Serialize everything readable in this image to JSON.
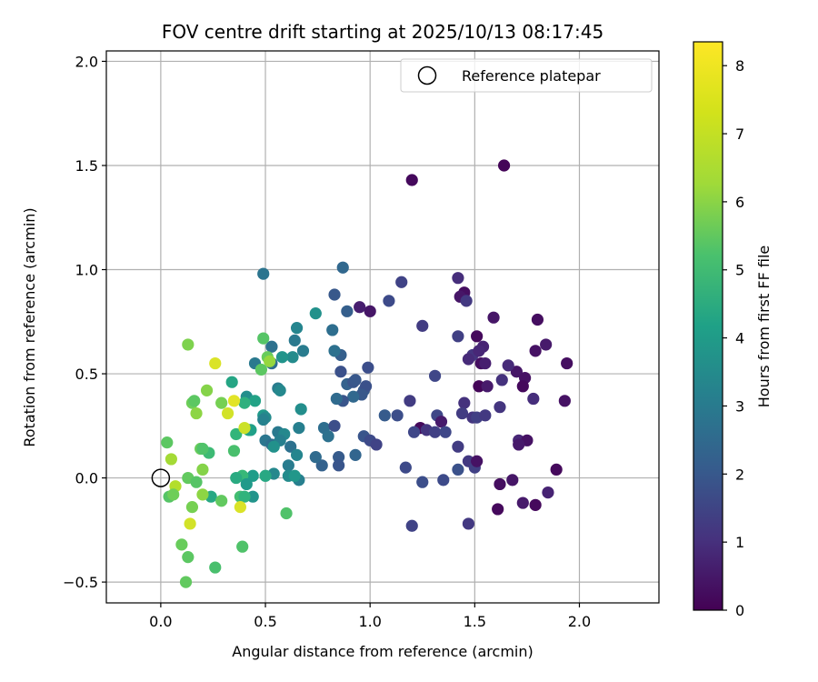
{
  "chart_data": {
    "type": "scatter",
    "title": "FOV centre drift starting at 2025/10/13 08:17:45",
    "xlabel": "Angular distance from reference (arcmin)",
    "ylabel": "Rotation from reference (arcmin)",
    "xlim": [
      -0.26,
      2.38
    ],
    "ylim": [
      -0.6,
      2.05
    ],
    "xticks": [
      0.0,
      0.5,
      1.0,
      1.5,
      2.0
    ],
    "xtick_labels": [
      "0.0",
      "0.5",
      "1.0",
      "1.5",
      "2.0"
    ],
    "yticks": [
      -0.5,
      0.0,
      0.5,
      1.0,
      1.5,
      2.0
    ],
    "ytick_labels": [
      "−0.5",
      "0.0",
      "0.5",
      "1.0",
      "1.5",
      "2.0"
    ],
    "grid": true,
    "legend": {
      "position": "top-right",
      "entries": [
        "Reference platepar"
      ]
    },
    "reference_point": {
      "x": 0.0,
      "y": 0.0,
      "label": "Reference platepar"
    },
    "colorbar": {
      "label": "Hours from first FF file",
      "range": [
        0,
        8.35
      ],
      "ticks": [
        0,
        1,
        2,
        3,
        4,
        5,
        6,
        7,
        8
      ],
      "tick_labels": [
        "0",
        "1",
        "2",
        "3",
        "4",
        "5",
        "6",
        "7",
        "8"
      ],
      "colormap": "viridis"
    },
    "points": [
      {
        "x": 1.2,
        "y": 1.43,
        "h": 0.2
      },
      {
        "x": 1.64,
        "y": 1.5,
        "h": 0.1
      },
      {
        "x": 1.8,
        "y": 0.76,
        "h": 0.3
      },
      {
        "x": 1.59,
        "y": 0.77,
        "h": 0.5
      },
      {
        "x": 1.84,
        "y": 0.64,
        "h": 0.6
      },
      {
        "x": 1.94,
        "y": 0.55,
        "h": 0.3
      },
      {
        "x": 1.79,
        "y": 0.61,
        "h": 0.4
      },
      {
        "x": 1.7,
        "y": 0.51,
        "h": 0.5
      },
      {
        "x": 1.74,
        "y": 0.48,
        "h": 0.4
      },
      {
        "x": 1.73,
        "y": 0.44,
        "h": 0.2
      },
      {
        "x": 1.66,
        "y": 0.54,
        "h": 1.0
      },
      {
        "x": 1.78,
        "y": 0.38,
        "h": 1.1
      },
      {
        "x": 1.93,
        "y": 0.37,
        "h": 0.4
      },
      {
        "x": 1.53,
        "y": 0.55,
        "h": 0.3
      },
      {
        "x": 1.55,
        "y": 0.55,
        "h": 0.7
      },
      {
        "x": 1.51,
        "y": 0.68,
        "h": 0.2
      },
      {
        "x": 1.54,
        "y": 0.63,
        "h": 0.8
      },
      {
        "x": 1.52,
        "y": 0.44,
        "h": 0.1
      },
      {
        "x": 1.56,
        "y": 0.44,
        "h": 0.6
      },
      {
        "x": 1.63,
        "y": 0.47,
        "h": 1.2
      },
      {
        "x": 1.49,
        "y": 0.59,
        "h": 1.3
      },
      {
        "x": 1.47,
        "y": 0.57,
        "h": 1.0
      },
      {
        "x": 1.52,
        "y": 0.61,
        "h": 0.9
      },
      {
        "x": 1.42,
        "y": 0.96,
        "h": 1.1
      },
      {
        "x": 1.45,
        "y": 0.89,
        "h": 0.3
      },
      {
        "x": 1.43,
        "y": 0.87,
        "h": 0.5
      },
      {
        "x": 1.46,
        "y": 0.85,
        "h": 1.4
      },
      {
        "x": 1.42,
        "y": 0.68,
        "h": 1.6
      },
      {
        "x": 1.25,
        "y": 0.73,
        "h": 1.5
      },
      {
        "x": 1.45,
        "y": 0.36,
        "h": 1.2
      },
      {
        "x": 1.44,
        "y": 0.31,
        "h": 1.5
      },
      {
        "x": 1.49,
        "y": 0.29,
        "h": 1.3
      },
      {
        "x": 1.51,
        "y": 0.29,
        "h": 1.6
      },
      {
        "x": 1.55,
        "y": 0.3,
        "h": 1.4
      },
      {
        "x": 1.62,
        "y": 0.34,
        "h": 1.3
      },
      {
        "x": 1.31,
        "y": 0.49,
        "h": 1.8
      },
      {
        "x": 1.19,
        "y": 0.37,
        "h": 1.5
      },
      {
        "x": 1.09,
        "y": 0.85,
        "h": 1.9
      },
      {
        "x": 1.15,
        "y": 0.94,
        "h": 1.7
      },
      {
        "x": 1.0,
        "y": 0.8,
        "h": 0.5
      },
      {
        "x": 0.95,
        "y": 0.82,
        "h": 0.7
      },
      {
        "x": 1.32,
        "y": 0.3,
        "h": 1.8
      },
      {
        "x": 1.34,
        "y": 0.27,
        "h": 0.6
      },
      {
        "x": 1.24,
        "y": 0.24,
        "h": 0.2
      },
      {
        "x": 1.27,
        "y": 0.23,
        "h": 1.3
      },
      {
        "x": 1.31,
        "y": 0.22,
        "h": 1.6
      },
      {
        "x": 1.36,
        "y": 0.22,
        "h": 1.8
      },
      {
        "x": 1.42,
        "y": 0.15,
        "h": 1.5
      },
      {
        "x": 1.21,
        "y": 0.22,
        "h": 1.8
      },
      {
        "x": 1.13,
        "y": 0.3,
        "h": 2.0
      },
      {
        "x": 1.07,
        "y": 0.3,
        "h": 2.4
      },
      {
        "x": 0.97,
        "y": 0.2,
        "h": 2.2
      },
      {
        "x": 1.0,
        "y": 0.18,
        "h": 1.9
      },
      {
        "x": 1.03,
        "y": 0.16,
        "h": 1.7
      },
      {
        "x": 1.17,
        "y": 0.05,
        "h": 1.9
      },
      {
        "x": 1.42,
        "y": 0.04,
        "h": 2.1
      },
      {
        "x": 1.47,
        "y": 0.08,
        "h": 1.4
      },
      {
        "x": 1.5,
        "y": 0.05,
        "h": 1.6
      },
      {
        "x": 1.51,
        "y": 0.08,
        "h": 0.4
      },
      {
        "x": 1.25,
        "y": -0.02,
        "h": 2.0
      },
      {
        "x": 1.35,
        "y": -0.01,
        "h": 1.9
      },
      {
        "x": 1.47,
        "y": -0.22,
        "h": 1.4
      },
      {
        "x": 1.2,
        "y": -0.23,
        "h": 1.7
      },
      {
        "x": 1.62,
        "y": -0.03,
        "h": 0.3
      },
      {
        "x": 1.68,
        "y": -0.01,
        "h": 0.5
      },
      {
        "x": 1.61,
        "y": -0.15,
        "h": 0.2
      },
      {
        "x": 1.73,
        "y": -0.12,
        "h": 0.6
      },
      {
        "x": 1.79,
        "y": -0.13,
        "h": 0.2
      },
      {
        "x": 1.85,
        "y": -0.07,
        "h": 0.8
      },
      {
        "x": 1.89,
        "y": 0.04,
        "h": 0.2
      },
      {
        "x": 1.71,
        "y": 0.18,
        "h": 0.9
      },
      {
        "x": 1.75,
        "y": 0.18,
        "h": 0.4
      },
      {
        "x": 1.71,
        "y": 0.16,
        "h": 0.6
      },
      {
        "x": 0.87,
        "y": 1.01,
        "h": 2.8
      },
      {
        "x": 0.83,
        "y": 0.88,
        "h": 2.3
      },
      {
        "x": 0.89,
        "y": 0.8,
        "h": 2.5
      },
      {
        "x": 0.82,
        "y": 0.71,
        "h": 3.0
      },
      {
        "x": 0.86,
        "y": 0.59,
        "h": 2.5
      },
      {
        "x": 0.83,
        "y": 0.61,
        "h": 3.1
      },
      {
        "x": 0.86,
        "y": 0.51,
        "h": 2.1
      },
      {
        "x": 0.89,
        "y": 0.45,
        "h": 2.6
      },
      {
        "x": 0.92,
        "y": 0.46,
        "h": 2.2
      },
      {
        "x": 0.93,
        "y": 0.47,
        "h": 2.3
      },
      {
        "x": 0.99,
        "y": 0.53,
        "h": 2.0
      },
      {
        "x": 0.97,
        "y": 0.42,
        "h": 2.4
      },
      {
        "x": 0.98,
        "y": 0.44,
        "h": 2.1
      },
      {
        "x": 0.96,
        "y": 0.4,
        "h": 2.3
      },
      {
        "x": 0.92,
        "y": 0.39,
        "h": 2.8
      },
      {
        "x": 0.87,
        "y": 0.37,
        "h": 2.2
      },
      {
        "x": 0.84,
        "y": 0.38,
        "h": 2.9
      },
      {
        "x": 0.78,
        "y": 0.24,
        "h": 3.0
      },
      {
        "x": 0.83,
        "y": 0.25,
        "h": 2.0
      },
      {
        "x": 0.8,
        "y": 0.2,
        "h": 3.1
      },
      {
        "x": 0.85,
        "y": 0.1,
        "h": 2.4
      },
      {
        "x": 0.85,
        "y": 0.06,
        "h": 2.2
      },
      {
        "x": 0.77,
        "y": 0.06,
        "h": 2.6
      },
      {
        "x": 0.74,
        "y": 0.1,
        "h": 2.9
      },
      {
        "x": 0.93,
        "y": 0.11,
        "h": 2.7
      },
      {
        "x": 0.74,
        "y": 0.79,
        "h": 4.2
      },
      {
        "x": 0.65,
        "y": 0.72,
        "h": 3.8
      },
      {
        "x": 0.64,
        "y": 0.66,
        "h": 3.4
      },
      {
        "x": 0.68,
        "y": 0.61,
        "h": 3.5
      },
      {
        "x": 0.63,
        "y": 0.58,
        "h": 4.0
      },
      {
        "x": 0.58,
        "y": 0.58,
        "h": 4.3
      },
      {
        "x": 0.53,
        "y": 0.63,
        "h": 3.1
      },
      {
        "x": 0.53,
        "y": 0.55,
        "h": 3.0
      },
      {
        "x": 0.49,
        "y": 0.98,
        "h": 3.2
      },
      {
        "x": 0.56,
        "y": 0.43,
        "h": 3.5
      },
      {
        "x": 0.57,
        "y": 0.42,
        "h": 3.9
      },
      {
        "x": 0.66,
        "y": 0.24,
        "h": 3.6
      },
      {
        "x": 0.67,
        "y": 0.33,
        "h": 4.1
      },
      {
        "x": 0.45,
        "y": 0.55,
        "h": 3.4
      },
      {
        "x": 0.49,
        "y": 0.3,
        "h": 4.5
      },
      {
        "x": 0.5,
        "y": 0.29,
        "h": 4.0
      },
      {
        "x": 0.49,
        "y": 0.28,
        "h": 3.7
      },
      {
        "x": 0.5,
        "y": 0.18,
        "h": 3.3
      },
      {
        "x": 0.53,
        "y": 0.16,
        "h": 3.0
      },
      {
        "x": 0.56,
        "y": 0.22,
        "h": 3.4
      },
      {
        "x": 0.59,
        "y": 0.21,
        "h": 3.9
      },
      {
        "x": 0.57,
        "y": 0.18,
        "h": 3.6
      },
      {
        "x": 0.54,
        "y": 0.15,
        "h": 4.2
      },
      {
        "x": 0.62,
        "y": 0.15,
        "h": 3.1
      },
      {
        "x": 0.61,
        "y": 0.06,
        "h": 3.5
      },
      {
        "x": 0.65,
        "y": 0.11,
        "h": 3.8
      },
      {
        "x": 0.54,
        "y": 0.02,
        "h": 3.9
      },
      {
        "x": 0.61,
        "y": 0.01,
        "h": 4.0
      },
      {
        "x": 0.66,
        "y": -0.01,
        "h": 3.6
      },
      {
        "x": 0.64,
        "y": 0.01,
        "h": 4.4
      },
      {
        "x": 0.5,
        "y": 0.01,
        "h": 5.0
      },
      {
        "x": 0.44,
        "y": 0.01,
        "h": 4.6
      },
      {
        "x": 0.41,
        "y": 0.39,
        "h": 4.1
      },
      {
        "x": 0.45,
        "y": 0.37,
        "h": 4.8
      },
      {
        "x": 0.4,
        "y": 0.36,
        "h": 5.3
      },
      {
        "x": 0.42,
        "y": 0.23,
        "h": 5.2
      },
      {
        "x": 0.43,
        "y": 0.23,
        "h": 4.7
      },
      {
        "x": 0.36,
        "y": 0.21,
        "h": 5.5
      },
      {
        "x": 0.35,
        "y": 0.13,
        "h": 5.9
      },
      {
        "x": 0.34,
        "y": 0.46,
        "h": 4.9
      },
      {
        "x": 0.39,
        "y": 0.01,
        "h": 5.6
      },
      {
        "x": 0.36,
        "y": 0.0,
        "h": 5.1
      },
      {
        "x": 0.41,
        "y": -0.03,
        "h": 4.5
      },
      {
        "x": 0.44,
        "y": -0.09,
        "h": 4.3
      },
      {
        "x": 0.38,
        "y": -0.09,
        "h": 5.8
      },
      {
        "x": 0.4,
        "y": -0.09,
        "h": 5.4
      },
      {
        "x": 0.23,
        "y": 0.12,
        "h": 5.7
      },
      {
        "x": 0.24,
        "y": -0.09,
        "h": 5.0
      },
      {
        "x": 0.49,
        "y": 0.67,
        "h": 6.1
      },
      {
        "x": 0.51,
        "y": 0.58,
        "h": 6.4
      },
      {
        "x": 0.52,
        "y": 0.56,
        "h": 7.0
      },
      {
        "x": 0.48,
        "y": 0.52,
        "h": 6.2
      },
      {
        "x": 0.6,
        "y": -0.17,
        "h": 6.0
      },
      {
        "x": 0.29,
        "y": -0.11,
        "h": 6.3
      },
      {
        "x": 0.29,
        "y": 0.36,
        "h": 6.6
      },
      {
        "x": 0.22,
        "y": 0.42,
        "h": 6.8
      },
      {
        "x": 0.15,
        "y": 0.36,
        "h": 6.5
      },
      {
        "x": 0.16,
        "y": 0.37,
        "h": 6.2
      },
      {
        "x": 0.17,
        "y": 0.31,
        "h": 6.9
      },
      {
        "x": 0.13,
        "y": 0.64,
        "h": 6.7
      },
      {
        "x": 0.19,
        "y": 0.14,
        "h": 6.4
      },
      {
        "x": 0.2,
        "y": 0.14,
        "h": 6.0
      },
      {
        "x": 0.2,
        "y": 0.04,
        "h": 6.8
      },
      {
        "x": 0.13,
        "y": 0.0,
        "h": 6.3
      },
      {
        "x": 0.17,
        "y": -0.02,
        "h": 6.1
      },
      {
        "x": 0.03,
        "y": 0.17,
        "h": 6.2
      },
      {
        "x": 0.05,
        "y": 0.09,
        "h": 7.2
      },
      {
        "x": 0.07,
        "y": -0.04,
        "h": 7.4
      },
      {
        "x": 0.04,
        "y": -0.09,
        "h": 6.1
      },
      {
        "x": 0.06,
        "y": -0.08,
        "h": 6.5
      },
      {
        "x": 0.15,
        "y": -0.14,
        "h": 6.6
      },
      {
        "x": 0.2,
        "y": -0.08,
        "h": 6.9
      },
      {
        "x": 0.1,
        "y": -0.32,
        "h": 6.4
      },
      {
        "x": 0.13,
        "y": -0.38,
        "h": 6.2
      },
      {
        "x": 0.12,
        "y": -0.5,
        "h": 6.3
      },
      {
        "x": 0.26,
        "y": -0.43,
        "h": 5.9
      },
      {
        "x": 0.39,
        "y": -0.33,
        "h": 6.0
      },
      {
        "x": 0.14,
        "y": -0.22,
        "h": 7.8
      },
      {
        "x": 0.38,
        "y": -0.14,
        "h": 7.9
      },
      {
        "x": 0.26,
        "y": 0.55,
        "h": 7.9
      },
      {
        "x": 0.35,
        "y": 0.37,
        "h": 8.0
      },
      {
        "x": 0.32,
        "y": 0.31,
        "h": 7.8
      },
      {
        "x": 0.4,
        "y": 0.24,
        "h": 7.7
      }
    ]
  }
}
